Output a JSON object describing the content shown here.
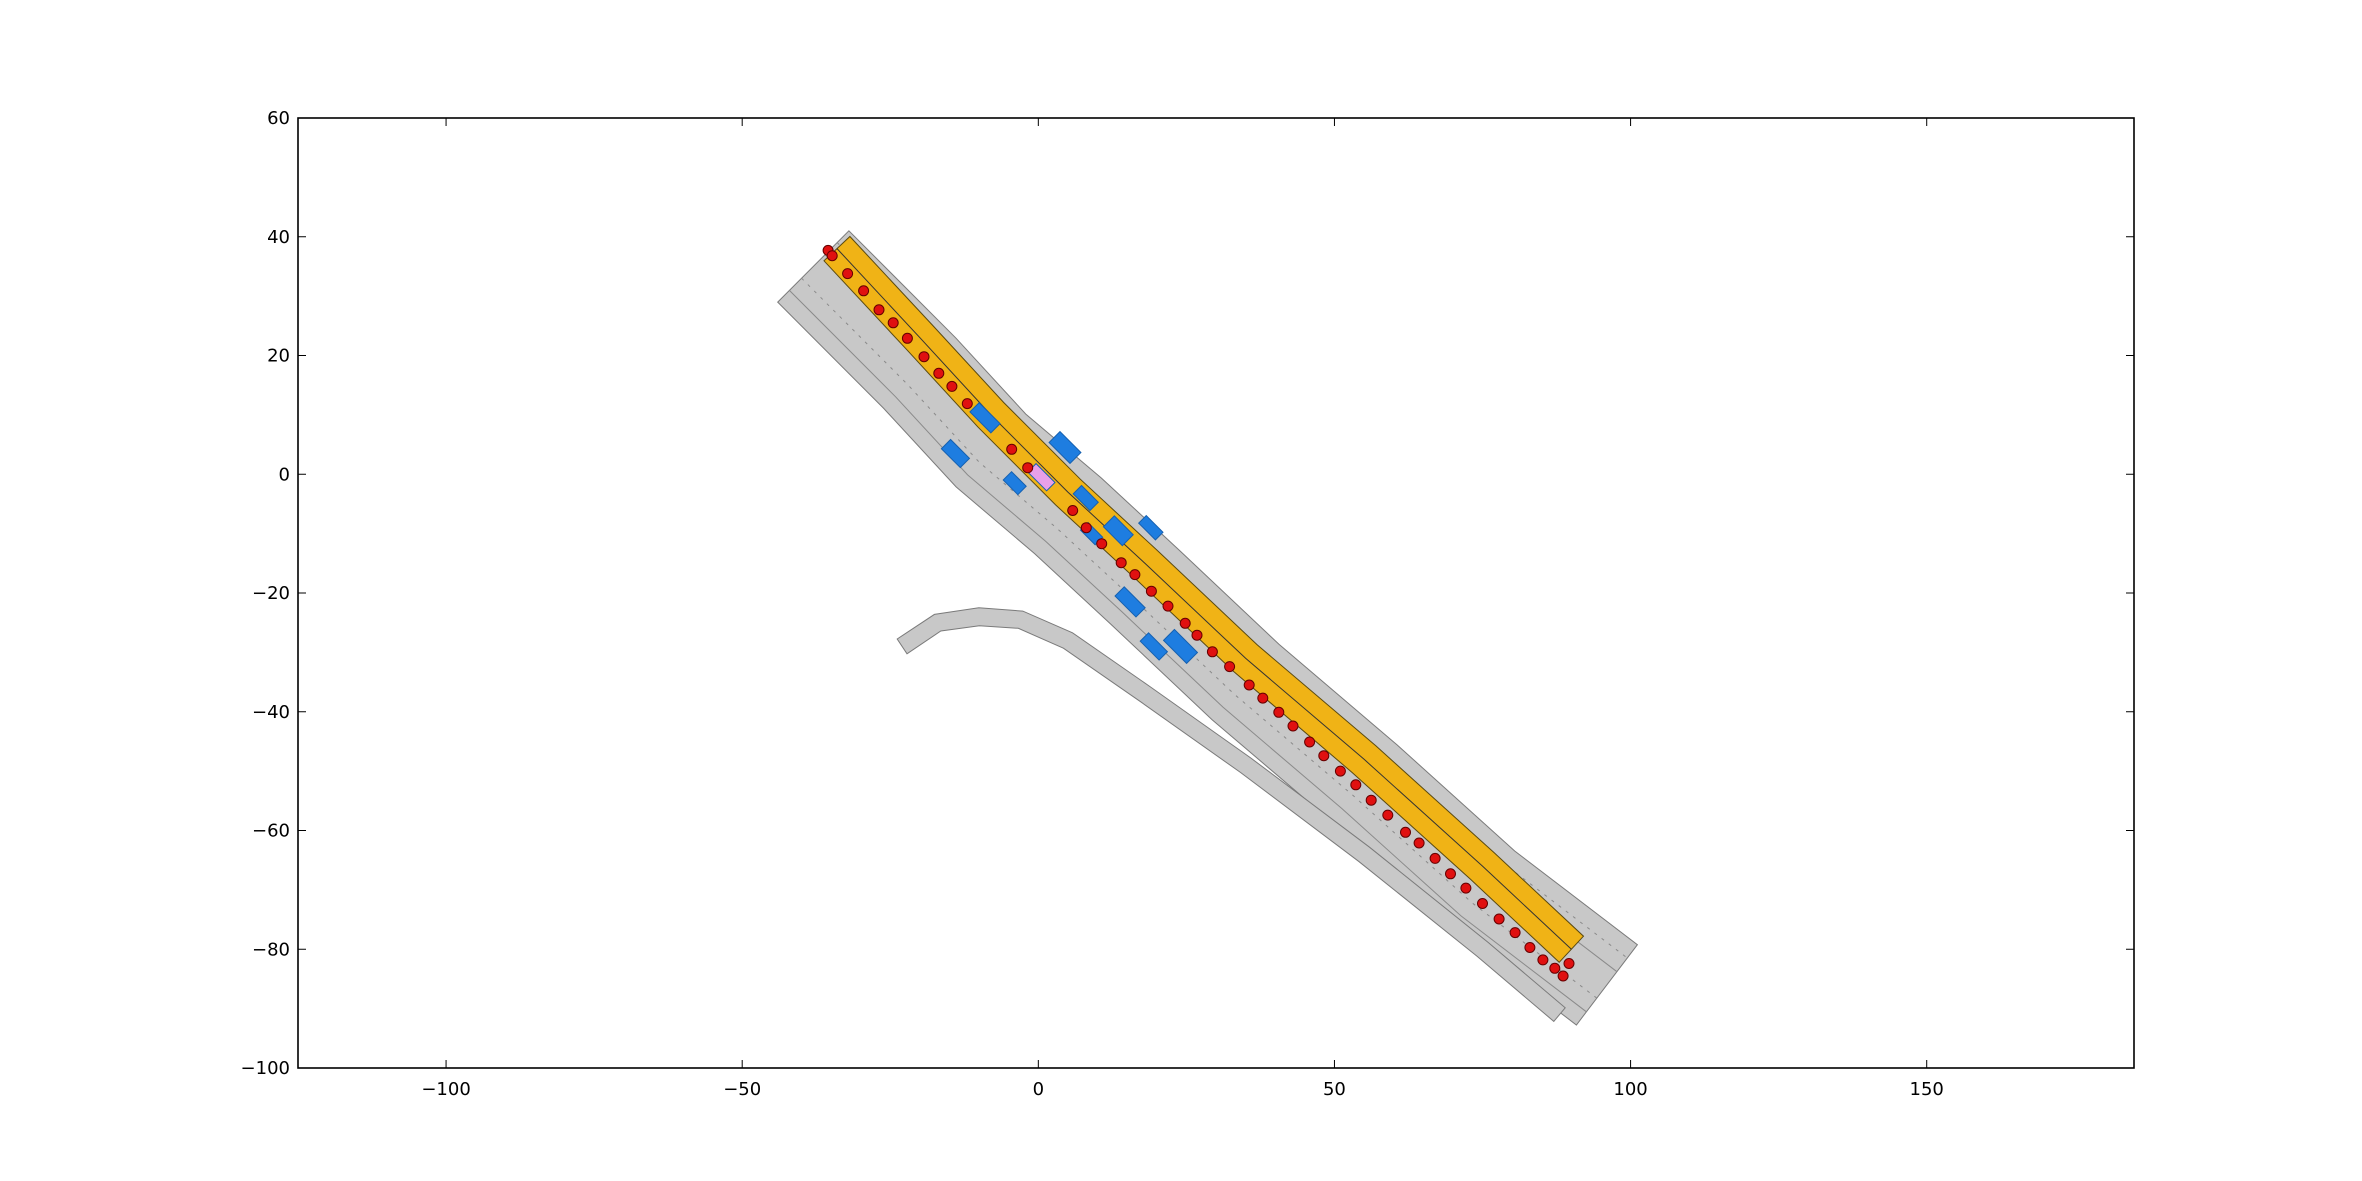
{
  "chart_data": {
    "type": "scatter",
    "title": "",
    "xlabel": "",
    "ylabel": "",
    "xlim": [
      -125,
      185
    ],
    "ylim": [
      -100,
      60
    ],
    "x_ticks": [
      -100,
      -50,
      0,
      50,
      100,
      150
    ],
    "y_ticks": [
      60,
      40,
      20,
      0,
      -20,
      -40,
      -60,
      -80,
      -100
    ],
    "x_tick_labels": [
      "−100",
      "−50",
      "0",
      "50",
      "100",
      "150"
    ],
    "y_tick_labels": [
      "60",
      "40",
      "20",
      "0",
      "−20",
      "−40",
      "−60",
      "−80",
      "−100"
    ],
    "grid": false,
    "colors": {
      "road": "#c8c8c8",
      "road_edge": "#7a7a7a",
      "route_lane": "#f0b316",
      "vehicle": "#1e7de0",
      "waypoint": "#e01010",
      "ego": "#e8a0e8"
    },
    "main_road": {
      "centerline": [
        [
          -38,
          35
        ],
        [
          -20,
          17
        ],
        [
          -8,
          4
        ],
        [
          5,
          -7
        ],
        [
          18,
          -19
        ],
        [
          35,
          -35
        ],
        [
          55,
          -52
        ],
        [
          75,
          -70
        ],
        [
          96,
          -86
        ]
      ],
      "width": 17
    },
    "route_lane": {
      "centerline": [
        [
          -34,
          38
        ],
        [
          -20,
          23
        ],
        [
          -8,
          10
        ],
        [
          5,
          -3
        ],
        [
          18,
          -15
        ],
        [
          35,
          -31
        ],
        [
          55,
          -48
        ],
        [
          75,
          -66
        ],
        [
          90,
          -80
        ]
      ],
      "width": 6
    },
    "ramp": {
      "centerline": [
        [
          -23,
          -29
        ],
        [
          -17,
          -25
        ],
        [
          -10,
          -24
        ],
        [
          -3,
          -24.5
        ],
        [
          5,
          -28
        ],
        [
          18,
          -37
        ],
        [
          35,
          -49
        ],
        [
          55,
          -64
        ],
        [
          75,
          -80
        ],
        [
          88,
          -91
        ]
      ],
      "width": 3
    },
    "waypoints": {
      "x": [
        -35.5,
        -34.8,
        -32.2,
        -29.5,
        -26.9,
        -24.5,
        -22.1,
        -19.3,
        -16.8,
        -14.6,
        -12.0,
        -4.5,
        -1.8,
        5.8,
        8.1,
        10.7,
        14.0,
        16.3,
        19.1,
        21.9,
        24.8,
        26.8,
        29.4,
        32.3,
        35.6,
        37.9,
        40.6,
        43.0,
        45.8,
        48.2,
        51.0,
        53.6,
        56.2,
        59.0,
        62.0,
        64.3,
        67.0,
        69.6,
        72.2,
        75.0,
        77.8,
        80.5,
        83.0,
        85.2,
        87.2,
        88.6,
        89.6
      ],
      "y": [
        37.7,
        36.8,
        33.8,
        30.9,
        27.7,
        25.5,
        22.9,
        19.8,
        17.0,
        14.8,
        11.9,
        4.2,
        1.1,
        -6.1,
        -9.0,
        -11.7,
        -14.9,
        -16.9,
        -19.7,
        -22.2,
        -25.1,
        -27.1,
        -29.9,
        -32.4,
        -35.5,
        -37.7,
        -40.1,
        -42.4,
        -45.1,
        -47.4,
        -50.0,
        -52.3,
        -54.9,
        -57.4,
        -60.3,
        -62.1,
        -64.7,
        -67.3,
        -69.7,
        -72.3,
        -74.9,
        -77.2,
        -79.7,
        -81.8,
        -83.2,
        -84.5,
        -82.4
      ]
    },
    "vehicles": [
      {
        "x": -9.0,
        "y": 9.5,
        "angle": -45,
        "length": 5.0,
        "width": 2.2
      },
      {
        "x": -14.0,
        "y": 3.5,
        "angle": -45,
        "length": 4.5,
        "width": 2.2
      },
      {
        "x": -4.0,
        "y": -1.5,
        "angle": -45,
        "length": 3.5,
        "width": 2.0
      },
      {
        "x": 4.5,
        "y": 4.5,
        "angle": -45,
        "length": 5.0,
        "width": 2.6
      },
      {
        "x": 8.0,
        "y": -4.0,
        "angle": -45,
        "length": 4.0,
        "width": 2.0
      },
      {
        "x": 13.5,
        "y": -9.5,
        "angle": -45,
        "length": 4.5,
        "width": 2.6
      },
      {
        "x": 19.0,
        "y": -9.0,
        "angle": -45,
        "length": 4.0,
        "width": 1.8
      },
      {
        "x": 15.5,
        "y": -21.5,
        "angle": -45,
        "length": 5.0,
        "width": 2.2
      },
      {
        "x": 19.5,
        "y": -29.0,
        "angle": -45,
        "length": 4.5,
        "width": 2.0
      },
      {
        "x": 24.0,
        "y": -29.0,
        "angle": -45,
        "length": 5.5,
        "width": 2.6
      },
      {
        "x": 9.0,
        "y": -10.0,
        "angle": -45,
        "length": 3.5,
        "width": 1.8
      }
    ],
    "ego_vehicle": {
      "x": 0.5,
      "y": -0.5,
      "angle": -45,
      "length": 4.5,
      "width": 2.0
    }
  }
}
